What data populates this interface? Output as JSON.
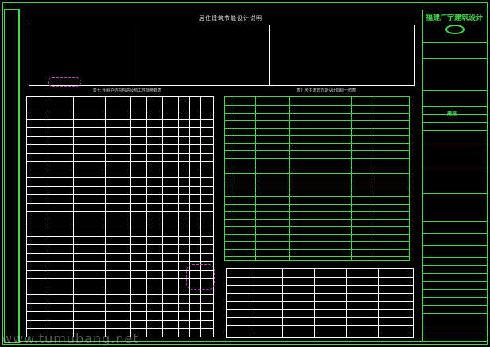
{
  "drawing": {
    "title": "居住建筑节能设计说明",
    "table1_caption": "表七 外围护结构构造及热工性能参数表",
    "table2_caption": "表2 居住建筑节能设计指标一览表",
    "colors": {
      "frame": "#3fd94a",
      "table": "#ffffff",
      "highlight": "#c0392b",
      "revision_cloud": "#c040c0"
    }
  },
  "title_block": {
    "company": "福建广宇建筑设计",
    "sheet_label": "建施"
  },
  "watermark": "www.tumubang.net"
}
